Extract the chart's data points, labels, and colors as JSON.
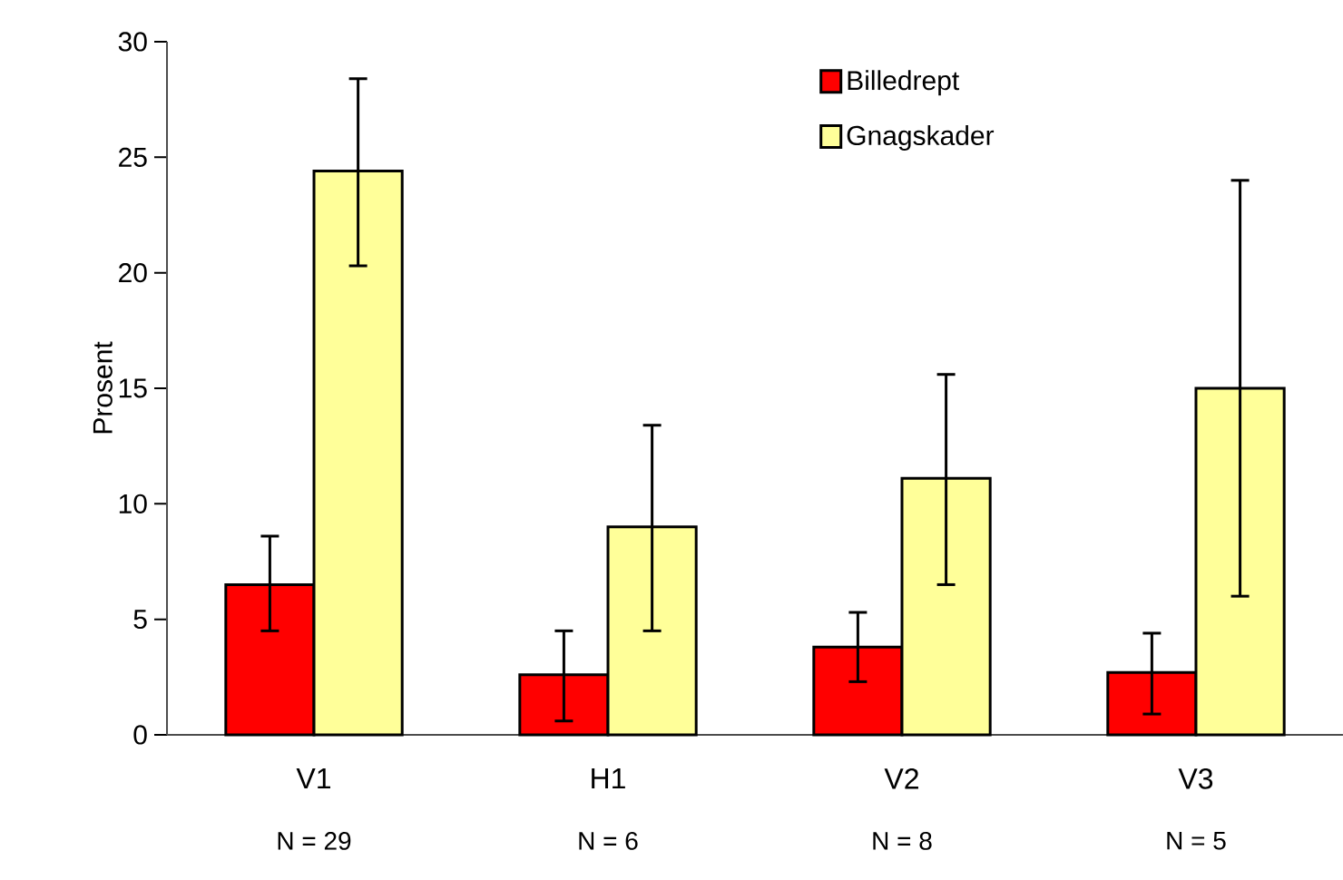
{
  "chart_data": {
    "type": "bar",
    "ylabel": "Prosent",
    "categories": [
      "V1",
      "H1",
      "V2",
      "V3"
    ],
    "series": [
      {
        "name": "Billedrept",
        "color": "#ff0000",
        "values": [
          6.5,
          2.6,
          3.8,
          2.7
        ],
        "errors": [
          [
            4.5,
            8.6
          ],
          [
            0.6,
            4.5
          ],
          [
            2.3,
            5.3
          ],
          [
            0.9,
            4.4
          ]
        ]
      },
      {
        "name": "Gnagskader",
        "color": "#ffff99",
        "values": [
          24.4,
          9.0,
          11.1,
          15.0
        ],
        "errors": [
          [
            20.3,
            28.4
          ],
          [
            4.5,
            13.4
          ],
          [
            6.5,
            15.6
          ],
          [
            6.0,
            24.0
          ]
        ]
      }
    ],
    "ylim": [
      0,
      30
    ],
    "yticks": [
      0,
      5,
      10,
      15,
      20,
      25,
      30
    ],
    "annotations": [
      "N = 29",
      "N = 6",
      "N = 8",
      "N = 5"
    ],
    "legend": "top",
    "grid": false
  }
}
